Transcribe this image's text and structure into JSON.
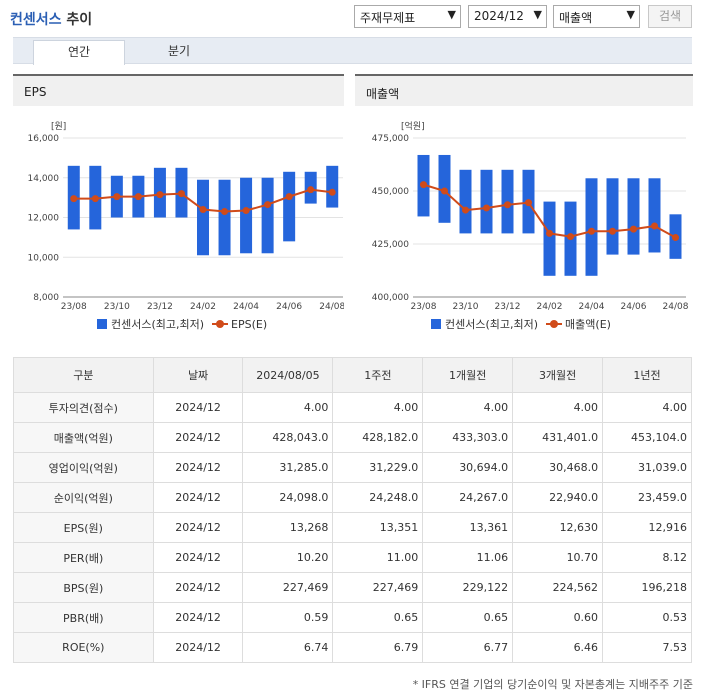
{
  "header": {
    "title_brand": "컨센서스",
    "title_rest": " 추이",
    "select_type": "주재무제표",
    "select_date": "2024/12",
    "select_metric": "매출액",
    "search_label": "검색"
  },
  "tabs": [
    {
      "label": "연간",
      "active": true
    },
    {
      "label": "분기",
      "active": false
    }
  ],
  "colors": {
    "bar": "#2565db",
    "line": "#d04b1a",
    "accent": "#2b5fb4"
  },
  "charts": [
    {
      "title": "EPS",
      "unit": "[원]",
      "legend_bar": "컨센서스(최고,최저)",
      "legend_line": "EPS(E)"
    },
    {
      "title": "매출액",
      "unit": "[억원]",
      "legend_bar": "컨센서스(최고,최저)",
      "legend_line": "매출액(E)"
    }
  ],
  "chart_data": [
    {
      "type": "bar",
      "title": "EPS",
      "ylabel": "[원]",
      "ylim": [
        8000,
        16000
      ],
      "yticks": [
        "16,000",
        "14,000",
        "12,000",
        "10,000",
        "8,000"
      ],
      "ytick_values": [
        16000,
        14000,
        12000,
        10000,
        8000
      ],
      "xtick_labels": [
        "23/08",
        "23/10",
        "23/12",
        "24/02",
        "24/04",
        "24/06",
        "24/08"
      ],
      "series": [
        {
          "name": "컨센서스(최고,최저)",
          "type": "floating-bar",
          "high": [
            14600,
            14600,
            14100,
            14100,
            14500,
            14500,
            13900,
            13900,
            14000,
            14000,
            14300,
            14300,
            14600
          ],
          "low": [
            11400,
            11400,
            12000,
            12000,
            12000,
            12000,
            10100,
            10100,
            10200,
            10200,
            10800,
            12700,
            12500
          ]
        },
        {
          "name": "EPS(E)",
          "type": "line",
          "values": [
            12950,
            12950,
            13050,
            13050,
            13150,
            13200,
            12400,
            12300,
            12350,
            12650,
            13050,
            13400,
            13268
          ]
        }
      ]
    },
    {
      "type": "bar",
      "title": "매출액",
      "ylabel": "[억원]",
      "ylim": [
        400000,
        475000
      ],
      "yticks": [
        "475,000",
        "450,000",
        "425,000",
        "400,000"
      ],
      "ytick_values": [
        475000,
        450000,
        425000,
        400000
      ],
      "xtick_labels": [
        "23/08",
        "23/10",
        "23/12",
        "24/02",
        "24/04",
        "24/06",
        "24/08"
      ],
      "series": [
        {
          "name": "컨센서스(최고,최저)",
          "type": "floating-bar",
          "high": [
            467000,
            467000,
            460000,
            460000,
            460000,
            460000,
            445000,
            445000,
            456000,
            456000,
            456000,
            456000,
            439000
          ],
          "low": [
            438000,
            435000,
            430000,
            430000,
            430000,
            430000,
            410000,
            410000,
            410000,
            420000,
            420000,
            421000,
            418000
          ]
        },
        {
          "name": "매출액(E)",
          "type": "line",
          "values": [
            453000,
            450000,
            441000,
            442000,
            443500,
            444500,
            430000,
            428500,
            431000,
            431000,
            432000,
            433500,
            428043
          ]
        }
      ]
    }
  ],
  "table": {
    "headers": [
      "구분",
      "날짜",
      "2024/08/05",
      "1주전",
      "1개월전",
      "3개월전",
      "1년전"
    ],
    "rows": [
      [
        "투자의견(점수)",
        "2024/12",
        "4.00",
        "4.00",
        "4.00",
        "4.00",
        "4.00"
      ],
      [
        "매출액(억원)",
        "2024/12",
        "428,043.0",
        "428,182.0",
        "433,303.0",
        "431,401.0",
        "453,104.0"
      ],
      [
        "영업이익(억원)",
        "2024/12",
        "31,285.0",
        "31,229.0",
        "30,694.0",
        "30,468.0",
        "31,039.0"
      ],
      [
        "순이익(억원)",
        "2024/12",
        "24,098.0",
        "24,248.0",
        "24,267.0",
        "22,940.0",
        "23,459.0"
      ],
      [
        "EPS(원)",
        "2024/12",
        "13,268",
        "13,351",
        "13,361",
        "12,630",
        "12,916"
      ],
      [
        "PER(배)",
        "2024/12",
        "10.20",
        "11.00",
        "11.06",
        "10.70",
        "8.12"
      ],
      [
        "BPS(원)",
        "2024/12",
        "227,469",
        "227,469",
        "229,122",
        "224,562",
        "196,218"
      ],
      [
        "PBR(배)",
        "2024/12",
        "0.59",
        "0.65",
        "0.65",
        "0.60",
        "0.53"
      ],
      [
        "ROE(%)",
        "2024/12",
        "6.74",
        "6.79",
        "6.77",
        "6.46",
        "7.53"
      ]
    ]
  },
  "footnote": "* IFRS 연결 기업의 당기순이익 및 자본총계는 지배주주 기준"
}
